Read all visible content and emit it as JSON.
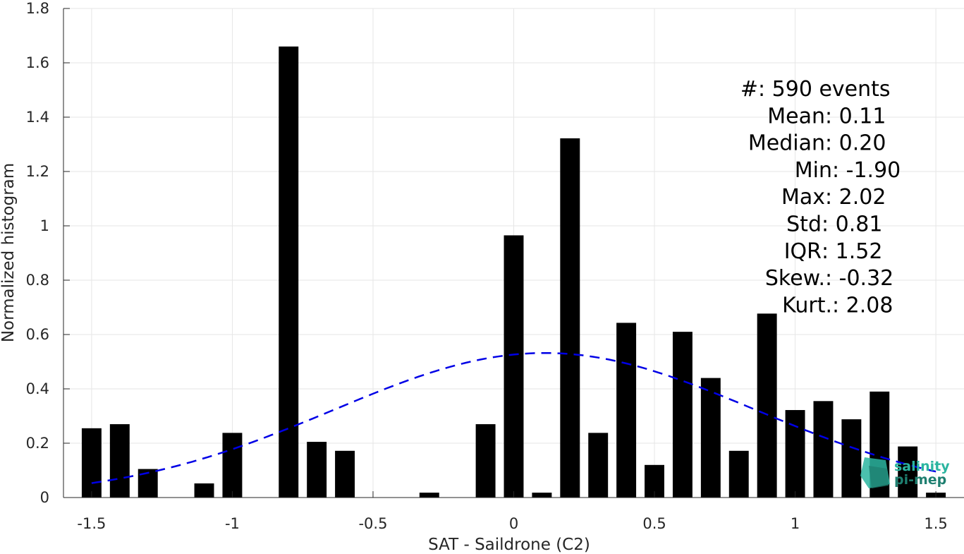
{
  "chart_data": {
    "type": "bar",
    "title": "",
    "xlabel": "SAT - Saildrone (C2)",
    "ylabel": "Normalized histogram",
    "xlim": [
      -1.6,
      1.6
    ],
    "ylim": [
      0,
      1.8
    ],
    "grid": true,
    "x_ticks": [
      -1.5,
      -1,
      -0.5,
      0,
      0.5,
      1,
      1.5
    ],
    "x_tick_labels": [
      "-1.5",
      "-1",
      "-0.5",
      "0",
      "0.5",
      "1",
      "1.5"
    ],
    "y_ticks": [
      0,
      0.2,
      0.4,
      0.6,
      0.8,
      1,
      1.2,
      1.4,
      1.6,
      1.8
    ],
    "y_tick_labels": [
      "0",
      "0.2",
      "0.4",
      "0.6",
      "0.8",
      "1",
      "1.2",
      "1.4",
      "1.6",
      "1.8"
    ],
    "bar_width": 0.07,
    "bar_color": "#000000",
    "bars": [
      {
        "x": -1.5,
        "y": 0.255
      },
      {
        "x": -1.4,
        "y": 0.27
      },
      {
        "x": -1.3,
        "y": 0.105
      },
      {
        "x": -1.1,
        "y": 0.052
      },
      {
        "x": -1.0,
        "y": 0.238
      },
      {
        "x": -0.8,
        "y": 1.66
      },
      {
        "x": -0.7,
        "y": 0.205
      },
      {
        "x": -0.6,
        "y": 0.172
      },
      {
        "x": -0.3,
        "y": 0.018
      },
      {
        "x": -0.1,
        "y": 0.27
      },
      {
        "x": 0.0,
        "y": 0.965
      },
      {
        "x": 0.1,
        "y": 0.018
      },
      {
        "x": 0.2,
        "y": 1.322
      },
      {
        "x": 0.3,
        "y": 0.238
      },
      {
        "x": 0.4,
        "y": 0.643
      },
      {
        "x": 0.5,
        "y": 0.12
      },
      {
        "x": 0.6,
        "y": 0.61
      },
      {
        "x": 0.7,
        "y": 0.44
      },
      {
        "x": 0.8,
        "y": 0.172
      },
      {
        "x": 0.9,
        "y": 0.677
      },
      {
        "x": 1.0,
        "y": 0.322
      },
      {
        "x": 1.1,
        "y": 0.355
      },
      {
        "x": 1.2,
        "y": 0.288
      },
      {
        "x": 1.3,
        "y": 0.39
      },
      {
        "x": 1.4,
        "y": 0.188
      },
      {
        "x": 1.5,
        "y": 0.018
      }
    ],
    "fit_curve": {
      "type": "gaussian",
      "mean": 0.11,
      "std": 0.75,
      "x_range": [
        -1.5,
        1.5
      ],
      "color": "#0000e6",
      "style": "dashed"
    },
    "stats": [
      {
        "label": "#  ",
        "value": ": 590 events"
      },
      {
        "label": "Mean ",
        "value": ": 0.11"
      },
      {
        "label": "Median ",
        "value": ": 0.20"
      },
      {
        "label": "Min ",
        "value": ": -1.90"
      },
      {
        "label": "Max ",
        "value": ": 2.02"
      },
      {
        "label": "Std ",
        "value": ": 0.81"
      },
      {
        "label": "IQR ",
        "value": ": 1.52"
      },
      {
        "label": "Skew. ",
        "value": ": -0.32"
      },
      {
        "label": "Kurt. ",
        "value": ": 2.08"
      }
    ]
  },
  "logo": {
    "line1": "salinity",
    "line2": "pi-mep",
    "color1": "#2bb5a0",
    "color2": "#1e7f70"
  },
  "colors": {
    "grid": "#e6e6e6",
    "axis": "#262626"
  }
}
